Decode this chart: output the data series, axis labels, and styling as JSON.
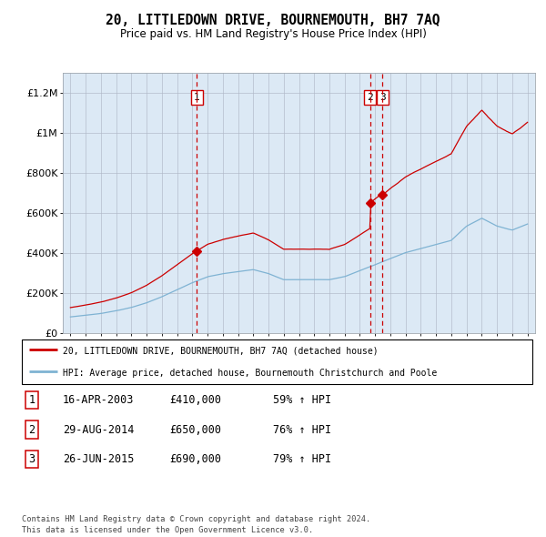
{
  "title": "20, LITTLEDOWN DRIVE, BOURNEMOUTH, BH7 7AQ",
  "subtitle": "Price paid vs. HM Land Registry's House Price Index (HPI)",
  "background_color": "#dce9f5",
  "plot_bg_color": "#dce9f5",
  "sale_color": "#cc0000",
  "hpi_color": "#7fb3d3",
  "marker_color": "#cc0000",
  "vline_color": "#cc0000",
  "sales": [
    {
      "date_num": 2003.29,
      "price": 410000,
      "label": "1"
    },
    {
      "date_num": 2014.66,
      "price": 650000,
      "label": "2"
    },
    {
      "date_num": 2015.49,
      "price": 690000,
      "label": "3"
    }
  ],
  "ylim": [
    0,
    1300000
  ],
  "yticks": [
    0,
    200000,
    400000,
    600000,
    800000,
    1000000,
    1200000
  ],
  "ytick_labels": [
    "£0",
    "£200K",
    "£400K",
    "£600K",
    "£800K",
    "£1M",
    "£1.2M"
  ],
  "legend_line1": "20, LITTLEDOWN DRIVE, BOURNEMOUTH, BH7 7AQ (detached house)",
  "legend_line2": "HPI: Average price, detached house, Bournemouth Christchurch and Poole",
  "table_rows": [
    [
      "1",
      "16-APR-2003",
      "£410,000",
      "59% ↑ HPI"
    ],
    [
      "2",
      "29-AUG-2014",
      "£650,000",
      "76% ↑ HPI"
    ],
    [
      "3",
      "26-JUN-2015",
      "£690,000",
      "79% ↑ HPI"
    ]
  ],
  "footer": "Contains HM Land Registry data © Crown copyright and database right 2024.\nThis data is licensed under the Open Government Licence v3.0.",
  "xmin": 1994.5,
  "xmax": 2025.5
}
